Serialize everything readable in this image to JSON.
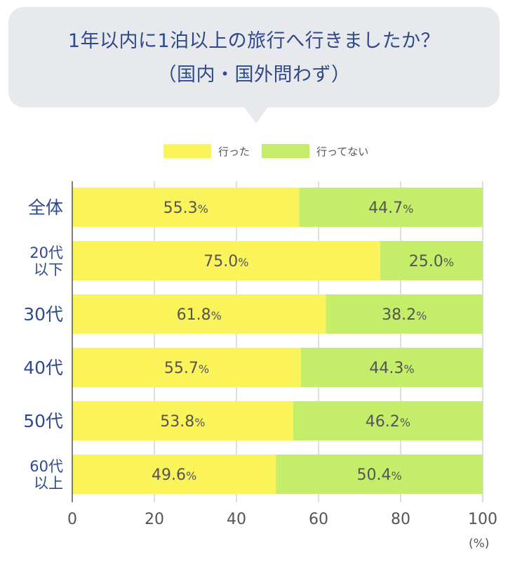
{
  "title": {
    "line1": "1年以内に1泊以上の旅行へ行きましたか？",
    "line2": "（国内・国外問わず）"
  },
  "colors": {
    "went": "#fbf35a",
    "not_went": "#c4ee6a",
    "title": "#2f4a8c",
    "bubble": "#e7e9ed"
  },
  "legend": {
    "went": "行った",
    "not_went": "行ってない"
  },
  "unit_label": "(%)",
  "chart_data": {
    "type": "bar",
    "orientation": "horizontal",
    "stacked": true,
    "categories": [
      [
        "全体"
      ],
      [
        "20代",
        "以下"
      ],
      [
        "30代"
      ],
      [
        "40代"
      ],
      [
        "50代"
      ],
      [
        "60代",
        "以上"
      ]
    ],
    "series": [
      {
        "name": "行った",
        "values": [
          55.3,
          75.0,
          61.8,
          55.7,
          53.8,
          49.6
        ],
        "color": "#fbf35a"
      },
      {
        "name": "行ってない",
        "values": [
          44.7,
          25.0,
          38.2,
          44.3,
          46.2,
          50.4
        ],
        "color": "#c4ee6a"
      }
    ],
    "value_suffix": "%",
    "xlim": [
      0,
      100
    ],
    "xticks": [
      0,
      20,
      40,
      60,
      80,
      100
    ],
    "xlabel": "(%)",
    "grid": true,
    "legend_position": "top"
  }
}
